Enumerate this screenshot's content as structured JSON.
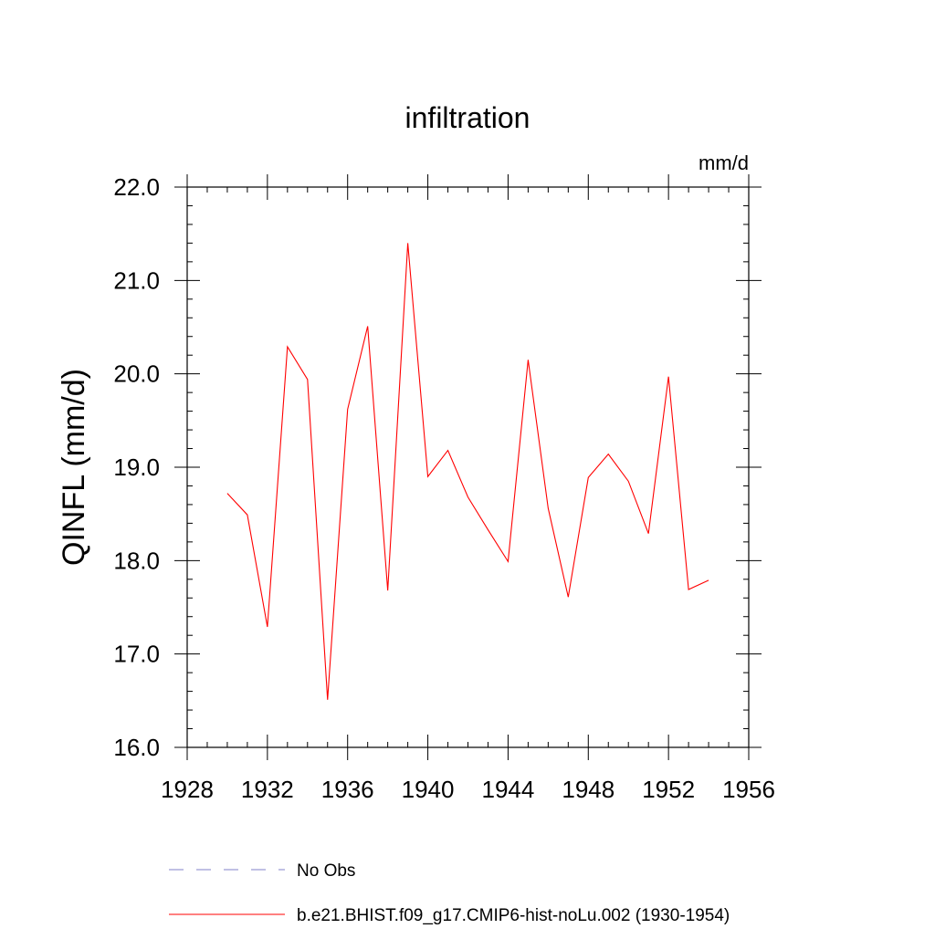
{
  "chart_data": {
    "type": "line",
    "title": "infiltration",
    "units": "mm/d",
    "ylabel": "QINFL  (mm/d)",
    "xlabel": "",
    "xlim": [
      1928,
      1956
    ],
    "ylim": [
      16.0,
      22.0
    ],
    "xticks": [
      "1928",
      "1932",
      "1936",
      "1940",
      "1944",
      "1948",
      "1952",
      "1956"
    ],
    "yticks": [
      "16.0",
      "17.0",
      "18.0",
      "19.0",
      "20.0",
      "21.0",
      "22.0"
    ],
    "grid": false,
    "legend_position": "bottom",
    "series": [
      {
        "name": "b.e21.BHIST.f09_g17.CMIP6-hist-noLu.002 (1930-1954)",
        "color": "#ff0000",
        "style": "solid",
        "x": [
          1930,
          1931,
          1932,
          1933,
          1934,
          1935,
          1936,
          1937,
          1938,
          1939,
          1940,
          1941,
          1942,
          1943,
          1944,
          1945,
          1946,
          1947,
          1948,
          1949,
          1950,
          1951,
          1952,
          1953,
          1954
        ],
        "y": [
          18.72,
          18.49,
          17.29,
          20.29,
          19.94,
          16.51,
          19.62,
          20.51,
          17.68,
          21.4,
          18.9,
          19.18,
          18.68,
          18.33,
          17.99,
          20.15,
          18.56,
          17.61,
          18.89,
          19.14,
          18.85,
          18.29,
          19.97,
          17.69,
          17.79
        ]
      }
    ],
    "legend": [
      {
        "label": "No Obs",
        "color": "#8080c8",
        "style": "dashed"
      },
      {
        "label": "b.e21.BHIST.f09_g17.CMIP6-hist-noLu.002 (1930-1954)",
        "color": "#ff0000",
        "style": "solid"
      }
    ]
  }
}
